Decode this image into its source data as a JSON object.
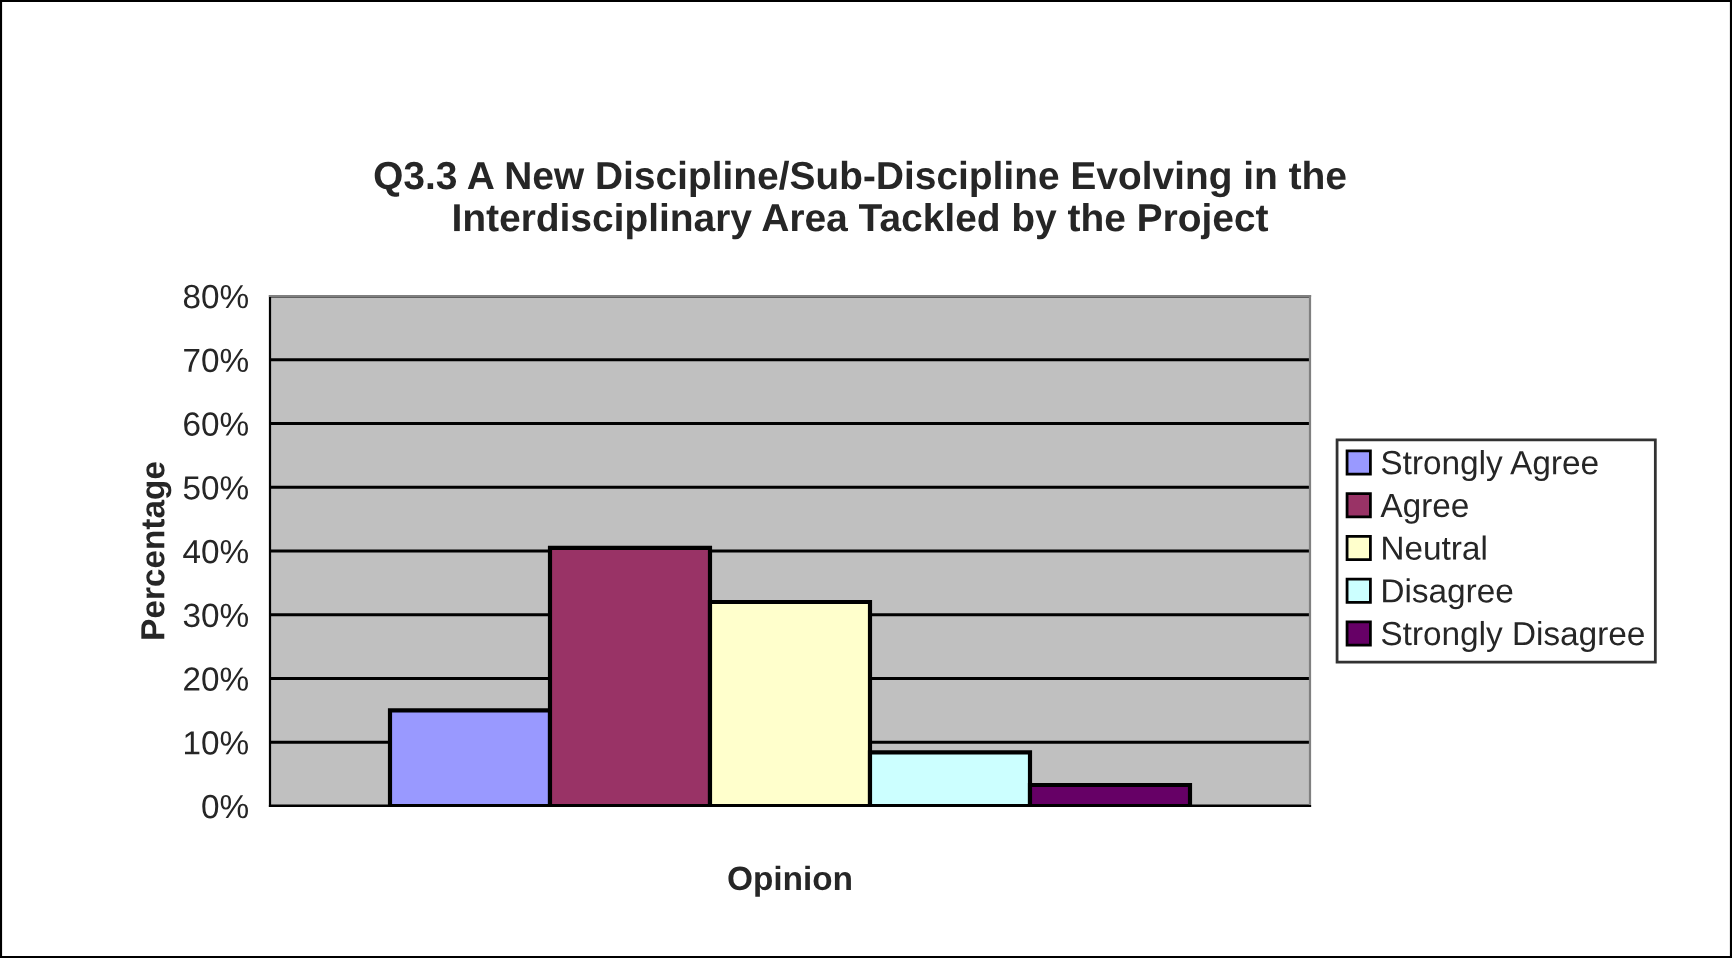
{
  "chart_data": {
    "type": "bar",
    "title": "Q3.3 A New Discipline/Sub-Discipline Evolving in the\nInterdisciplinary Area Tackled by the Project",
    "xlabel": "Opinion",
    "ylabel": "Percentage",
    "categories": [
      null
    ],
    "series": [
      {
        "name": "Strongly Agree",
        "color": "#9999ff",
        "values": [
          15
        ]
      },
      {
        "name": "Agree",
        "color": "#993366",
        "values": [
          40.5
        ]
      },
      {
        "name": "Neutral",
        "color": "#ffffcc",
        "values": [
          32
        ]
      },
      {
        "name": "Disagree",
        "color": "#ccffff",
        "values": [
          8.4
        ]
      },
      {
        "name": "Strongly Disagree",
        "color": "#660066",
        "values": [
          3.3
        ]
      }
    ],
    "ylim": [
      0,
      80
    ],
    "yticks": [
      {
        "value": 0,
        "label": "0%"
      },
      {
        "value": 10,
        "label": "10%"
      },
      {
        "value": 20,
        "label": "20%"
      },
      {
        "value": 30,
        "label": "30%"
      },
      {
        "value": 40,
        "label": "40%"
      },
      {
        "value": 50,
        "label": "50%"
      },
      {
        "value": 60,
        "label": "60%"
      },
      {
        "value": 70,
        "label": "70%"
      },
      {
        "value": 80,
        "label": "80%"
      }
    ],
    "grid": "y",
    "legend": "right"
  }
}
